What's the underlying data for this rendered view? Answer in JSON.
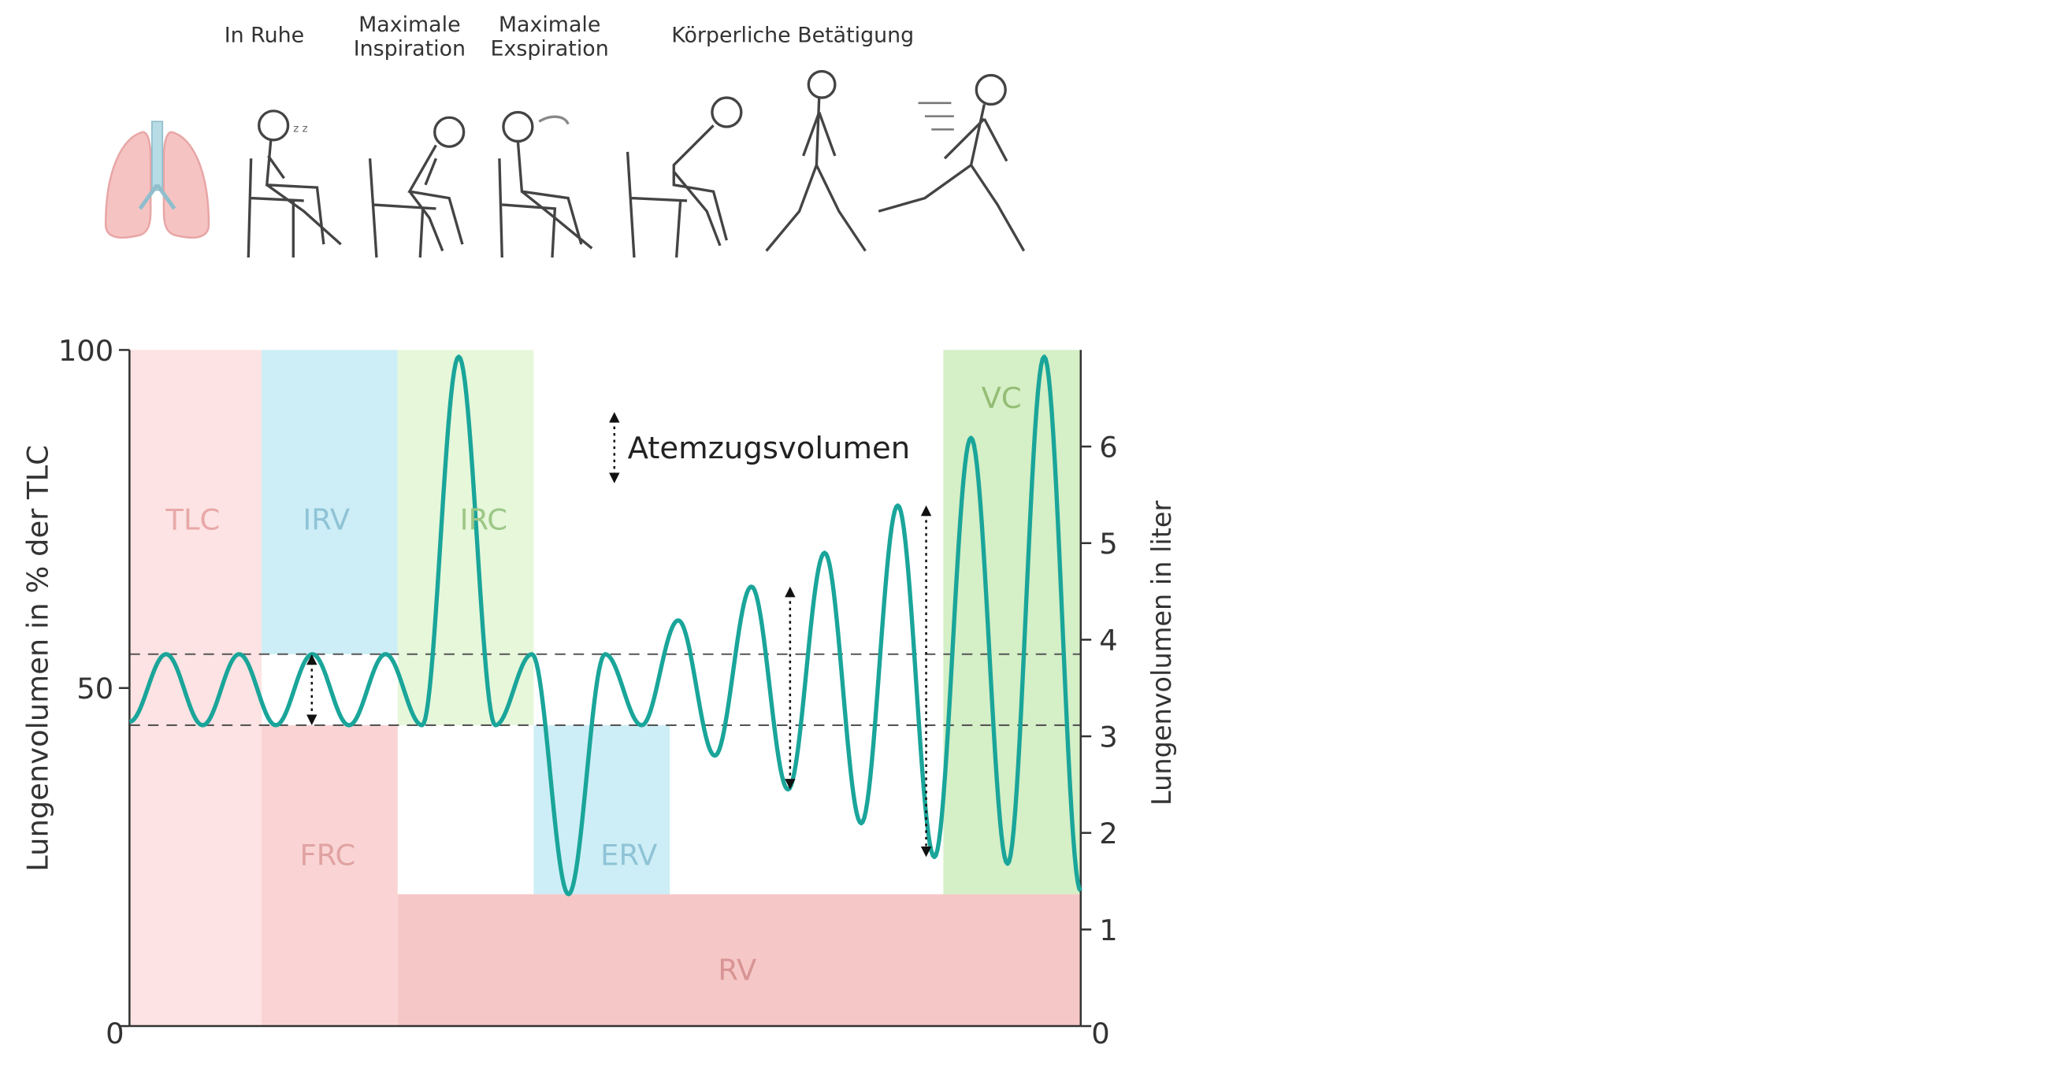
{
  "phases": {
    "rest": "In Ruhe",
    "max_insp": [
      "Maximale",
      "Inspiration"
    ],
    "max_exp": [
      "Maximale",
      "Exspiration"
    ],
    "exercise": "Körperliche Betätigung"
  },
  "chart_data": {
    "type": "line",
    "y_left": {
      "label": "Lungenvolumen in % der TLC",
      "ticks": [
        "100",
        "50",
        "0"
      ],
      "range": [
        0,
        100
      ]
    },
    "y_right": {
      "label": "Lungenvolumen in liter",
      "ticks": [
        "6",
        "5",
        "4",
        "3",
        "2",
        "1",
        "0"
      ],
      "range": [
        0,
        7
      ]
    },
    "regions": [
      {
        "label": "TLC",
        "color": "#fde3e3",
        "text_color": "#e8a8a8"
      },
      {
        "label": "IRV",
        "color": "#cdeef6",
        "text_color": "#8fc3d6"
      },
      {
        "label": "IRC",
        "color": "#e6f7da",
        "text_color": "#9cc786"
      },
      {
        "label": "FRC",
        "color": "#fad4d4",
        "text_color": "#e0a2a2"
      },
      {
        "label": "ERV",
        "color": "#cdeef6",
        "text_color": "#8fc3d6"
      },
      {
        "label": "RV",
        "color": "#f6c7c7",
        "text_color": "#d89494"
      },
      {
        "label": "VC",
        "color": "#d5efc6",
        "text_color": "#93bd74"
      }
    ],
    "legend": "Atemzugsvolumen",
    "dashed_levels_pct": [
      55,
      44.5
    ],
    "rv_level_pct": 19.5,
    "line_color": "#1aa59a",
    "breathing_trace": [
      [
        0,
        45
      ],
      [
        5,
        55
      ],
      [
        10,
        44.5
      ],
      [
        15,
        55
      ],
      [
        20,
        44.5
      ],
      [
        25,
        55
      ],
      [
        30,
        44.5
      ],
      [
        35,
        55
      ],
      [
        40,
        44.5
      ],
      [
        45,
        99
      ],
      [
        50,
        44.5
      ],
      [
        55,
        55
      ],
      [
        60,
        19.5
      ],
      [
        65,
        55
      ],
      [
        70,
        44.5
      ],
      [
        75,
        60
      ],
      [
        80,
        40
      ],
      [
        85,
        65
      ],
      [
        90,
        35
      ],
      [
        95,
        70
      ],
      [
        100,
        30
      ],
      [
        105,
        77
      ],
      [
        110,
        25
      ],
      [
        115,
        87
      ],
      [
        120,
        24
      ],
      [
        125,
        99
      ],
      [
        130,
        20
      ]
    ]
  }
}
